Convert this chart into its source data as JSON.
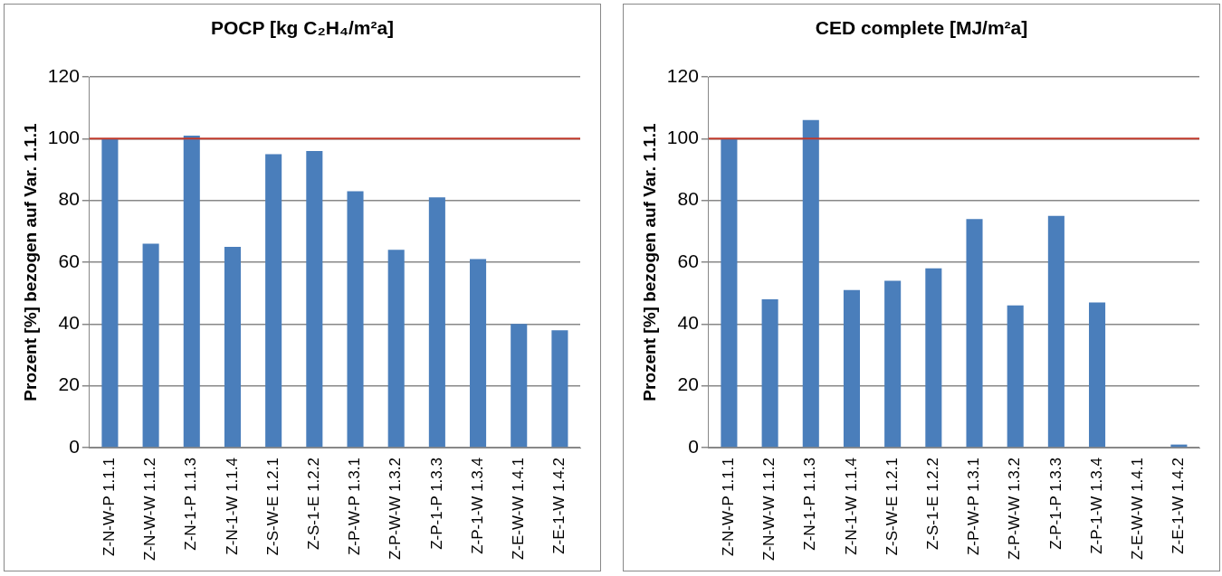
{
  "chart_data": [
    {
      "type": "bar",
      "title": "POCP [kg C₂H₄/m²a]",
      "ylabel": "Prozent [%] bezogen auf Var. 1.1.1",
      "categories": [
        "Z-N-W-P 1.1.1",
        "Z-N-W-W 1.1.2",
        "Z-N-1-P 1.1.3",
        "Z-N-1-W 1.1.4",
        "Z-S-W-E 1.2.1",
        "Z-S-1-E 1.2.2",
        "Z-P-W-P 1.3.1",
        "Z-P-W-W 1.3.2",
        "Z-P-1-P 1.3.3",
        "Z-P-1-W 1.3.4",
        "Z-E-W-W 1.4.1",
        "Z-E-1-W 1.4.2"
      ],
      "values": [
        100,
        66,
        101,
        65,
        95,
        96,
        83,
        64,
        81,
        61,
        40,
        38
      ],
      "color": "#4a7ebb",
      "ylim": [
        0,
        120
      ],
      "yticks": [
        0,
        20,
        40,
        60,
        80,
        100,
        120
      ],
      "grid": "y",
      "ref_lines": [
        {
          "axis": "y",
          "value": 100,
          "color": "#c0392b"
        }
      ]
    },
    {
      "type": "bar",
      "title": "CED complete [MJ/m²a]",
      "ylabel": "Prozent [%] bezogen auf Var. 1.1.1",
      "categories": [
        "Z-N-W-P 1.1.1",
        "Z-N-W-W 1.1.2",
        "Z-N-1-P 1.1.3",
        "Z-N-1-W 1.1.4",
        "Z-S-W-E 1.2.1",
        "Z-S-1-E 1.2.2",
        "Z-P-W-P 1.3.1",
        "Z-P-W-W 1.3.2",
        "Z-P-1-P 1.3.3",
        "Z-P-1-W 1.3.4",
        "Z-E-W-W 1.4.1",
        "Z-E-1-W 1.4.2"
      ],
      "values": [
        100,
        48,
        106,
        51,
        54,
        58,
        74,
        46,
        75,
        47,
        0,
        1
      ],
      "color": "#4a7ebb",
      "ylim": [
        0,
        120
      ],
      "yticks": [
        0,
        20,
        40,
        60,
        80,
        100,
        120
      ],
      "grid": "y",
      "ref_lines": [
        {
          "axis": "y",
          "value": 100,
          "color": "#c0392b"
        }
      ]
    }
  ]
}
